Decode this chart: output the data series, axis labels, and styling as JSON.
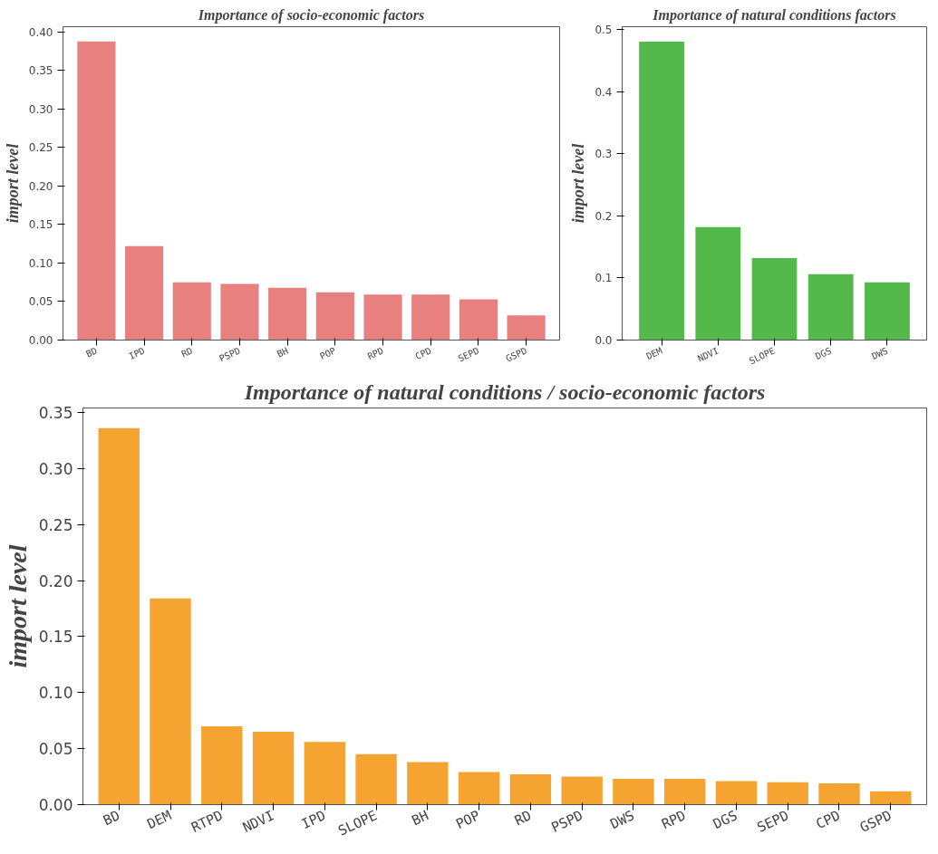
{
  "chart_data": [
    {
      "type": "bar",
      "title": "Importance of socio-economic factors",
      "ylabel": "import level",
      "categories": [
        "BD",
        "IPD",
        "RD",
        "PSPD",
        "BH",
        "POP",
        "RPD",
        "CPD",
        "SEPD",
        "GSPD"
      ],
      "values": [
        0.388,
        0.122,
        0.075,
        0.073,
        0.068,
        0.062,
        0.059,
        0.059,
        0.053,
        0.032
      ],
      "color": "#e88080",
      "ylim": [
        0,
        0.407
      ],
      "yticks": [
        {
          "value": 0,
          "label": "0.00"
        },
        {
          "value": 0.05,
          "label": "0.05"
        },
        {
          "value": 0.1,
          "label": "0.10"
        },
        {
          "value": 0.15,
          "label": "0.15"
        },
        {
          "value": 0.2,
          "label": "0.20"
        },
        {
          "value": 0.25,
          "label": "0.25"
        },
        {
          "value": 0.3,
          "label": "0.30"
        },
        {
          "value": 0.35,
          "label": "0.35"
        },
        {
          "value": 0.4,
          "label": "0.40"
        }
      ],
      "grid": false
    },
    {
      "type": "bar",
      "title": "Importance of natural conditions factors",
      "ylabel": "import level",
      "categories": [
        "DEM",
        "NDVI",
        "SLOPE",
        "DGS",
        "DWS"
      ],
      "values": [
        0.481,
        0.182,
        0.132,
        0.106,
        0.093
      ],
      "color": "#52b94a",
      "ylim": [
        0,
        0.505
      ],
      "yticks": [
        {
          "value": 0,
          "label": "0.0"
        },
        {
          "value": 0.1,
          "label": "0.1"
        },
        {
          "value": 0.2,
          "label": "0.2"
        },
        {
          "value": 0.3,
          "label": "0.3"
        },
        {
          "value": 0.4,
          "label": "0.4"
        },
        {
          "value": 0.5,
          "label": "0.5"
        }
      ],
      "grid": false
    },
    {
      "type": "bar",
      "title": "Importance of natural conditions / socio-economic factors",
      "ylabel": "import level",
      "categories": [
        "BD",
        "DEM",
        "RTPD",
        "NDVI",
        "IPD",
        "SLOPE",
        "BH",
        "POP",
        "RD",
        "PSPD",
        "DWS",
        "RPD",
        "DGS",
        "SEPD",
        "CPD",
        "GSPD"
      ],
      "values": [
        0.336,
        0.184,
        0.07,
        0.065,
        0.056,
        0.045,
        0.038,
        0.029,
        0.027,
        0.025,
        0.023,
        0.023,
        0.021,
        0.02,
        0.019,
        0.012
      ],
      "color": "#f5a431",
      "ylim": [
        0,
        0.354
      ],
      "yticks": [
        {
          "value": 0,
          "label": "0.00"
        },
        {
          "value": 0.05,
          "label": "0.05"
        },
        {
          "value": 0.1,
          "label": "0.10"
        },
        {
          "value": 0.15,
          "label": "0.15"
        },
        {
          "value": 0.2,
          "label": "0.20"
        },
        {
          "value": 0.25,
          "label": "0.25"
        },
        {
          "value": 0.3,
          "label": "0.30"
        },
        {
          "value": 0.35,
          "label": "0.35"
        }
      ],
      "grid": false
    }
  ]
}
